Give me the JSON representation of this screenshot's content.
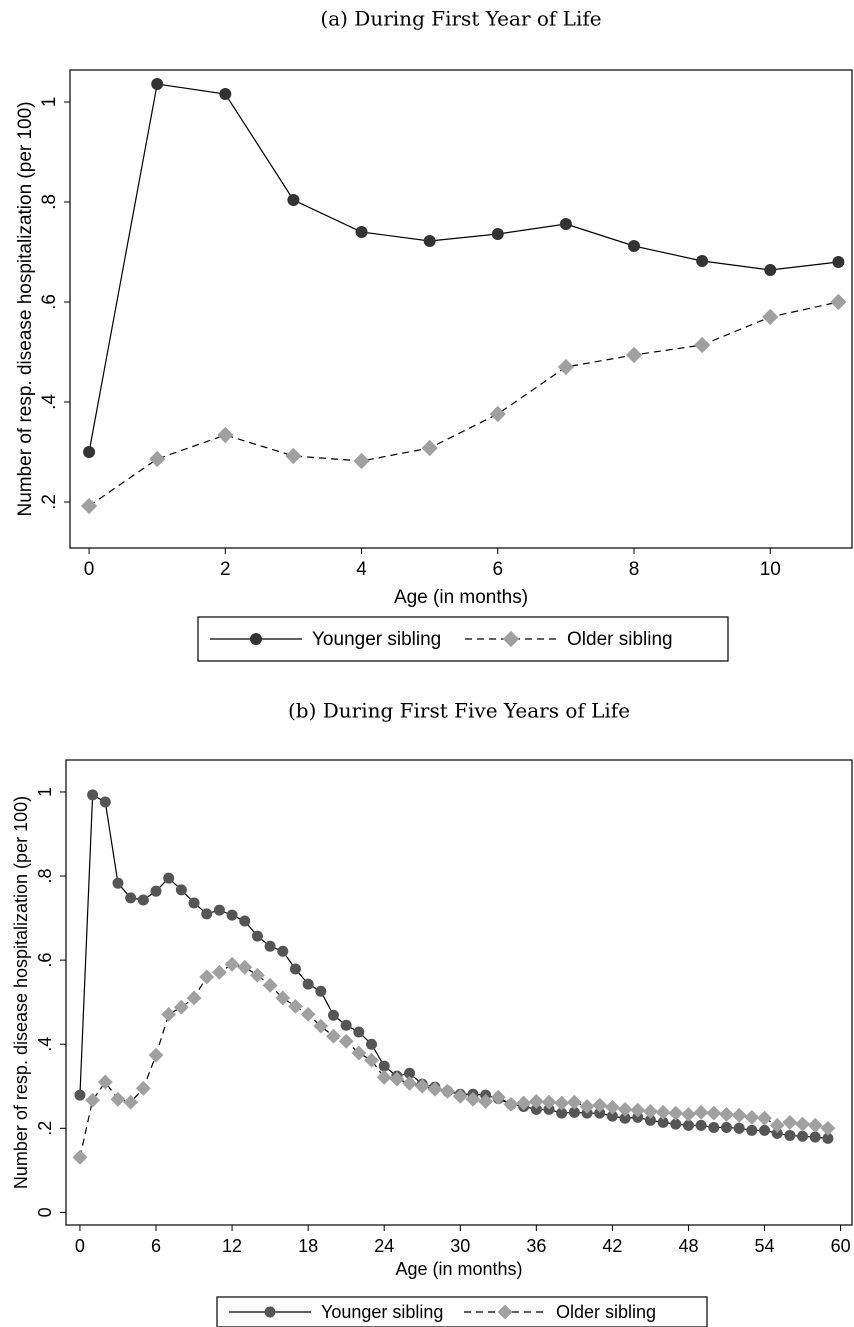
{
  "chart_data": [
    {
      "type": "line",
      "title": "(a) During First Year of Life",
      "x_label": "Age (in months)",
      "y_label": "Number of resp. disease hospitalization (per 100)",
      "x": [
        0,
        1,
        2,
        3,
        4,
        5,
        6,
        7,
        8,
        9,
        10,
        11
      ],
      "xlim": [
        -0.28,
        11.2
      ],
      "xticks": [
        0,
        2,
        4,
        6,
        8,
        10
      ],
      "ylim": [
        0.108,
        1.064
      ],
      "yticks": [
        {
          "value": 0.2,
          "label": ".2"
        },
        {
          "value": 0.4,
          "label": ".4"
        },
        {
          "value": 0.6,
          "label": ".6"
        },
        {
          "value": 0.8,
          "label": ".8"
        },
        1
      ],
      "series": [
        {
          "name": "Younger sibling",
          "color": "#333333",
          "marker": "circle",
          "dash": false,
          "values": [
            0.3,
            1.036,
            1.016,
            0.804,
            0.74,
            0.722,
            0.736,
            0.756,
            0.712,
            0.682,
            0.664,
            0.68
          ]
        },
        {
          "name": "Older sibling",
          "color": "#a0a0a0",
          "marker": "diamond",
          "dash": true,
          "values": [
            0.192,
            0.286,
            0.334,
            0.292,
            0.282,
            0.308,
            0.376,
            0.47,
            0.494,
            0.514,
            0.57,
            0.6
          ]
        }
      ]
    },
    {
      "type": "line",
      "title": "(b) During First Five Years of Life",
      "x_label": "Age (in months)",
      "y_label": "Number of resp. disease hospitalization (per 100)",
      "x": [
        0,
        1,
        2,
        3,
        4,
        5,
        6,
        7,
        8,
        9,
        10,
        11,
        12,
        13,
        14,
        15,
        16,
        17,
        18,
        19,
        20,
        21,
        22,
        23,
        24,
        25,
        26,
        27,
        28,
        29,
        30,
        31,
        32,
        33,
        34,
        35,
        36,
        37,
        38,
        39,
        40,
        41,
        42,
        43,
        44,
        45,
        46,
        47,
        48,
        49,
        50,
        51,
        52,
        53,
        54,
        55,
        56,
        57,
        58,
        59
      ],
      "xlim": [
        -1.1,
        60.9
      ],
      "xticks": [
        0,
        6,
        12,
        18,
        24,
        30,
        36,
        42,
        48,
        54,
        60
      ],
      "ylim": [
        -0.03,
        1.076
      ],
      "yticks": [
        0,
        {
          "value": 0.2,
          "label": ".2"
        },
        {
          "value": 0.4,
          "label": ".4"
        },
        {
          "value": 0.6,
          "label": ".6"
        },
        {
          "value": 0.8,
          "label": ".8"
        },
        1
      ],
      "series": [
        {
          "name": "Younger sibling",
          "color": "#555555",
          "marker": "circle",
          "dash": false,
          "values": [
            0.279,
            0.993,
            0.976,
            0.783,
            0.748,
            0.743,
            0.764,
            0.795,
            0.767,
            0.736,
            0.71,
            0.719,
            0.707,
            0.693,
            0.657,
            0.633,
            0.621,
            0.579,
            0.543,
            0.526,
            0.469,
            0.445,
            0.429,
            0.4,
            0.348,
            0.324,
            0.331,
            0.305,
            0.298,
            0.288,
            0.281,
            0.281,
            0.279,
            0.271,
            0.257,
            0.252,
            0.245,
            0.245,
            0.236,
            0.238,
            0.236,
            0.236,
            0.229,
            0.224,
            0.226,
            0.219,
            0.214,
            0.21,
            0.207,
            0.207,
            0.202,
            0.202,
            0.2,
            0.195,
            0.195,
            0.188,
            0.183,
            0.181,
            0.179,
            0.176
          ]
        },
        {
          "name": "Older sibling",
          "color": "#a0a0a0",
          "marker": "diamond",
          "dash": true,
          "values": [
            0.131,
            0.267,
            0.31,
            0.269,
            0.262,
            0.295,
            0.374,
            0.471,
            0.488,
            0.51,
            0.56,
            0.571,
            0.59,
            0.583,
            0.564,
            0.54,
            0.51,
            0.49,
            0.471,
            0.443,
            0.419,
            0.407,
            0.379,
            0.362,
            0.321,
            0.317,
            0.307,
            0.3,
            0.293,
            0.288,
            0.276,
            0.269,
            0.264,
            0.274,
            0.257,
            0.26,
            0.264,
            0.262,
            0.26,
            0.262,
            0.252,
            0.255,
            0.25,
            0.245,
            0.243,
            0.24,
            0.238,
            0.236,
            0.233,
            0.238,
            0.236,
            0.233,
            0.231,
            0.226,
            0.224,
            0.207,
            0.214,
            0.21,
            0.207,
            0.2
          ]
        }
      ]
    }
  ]
}
